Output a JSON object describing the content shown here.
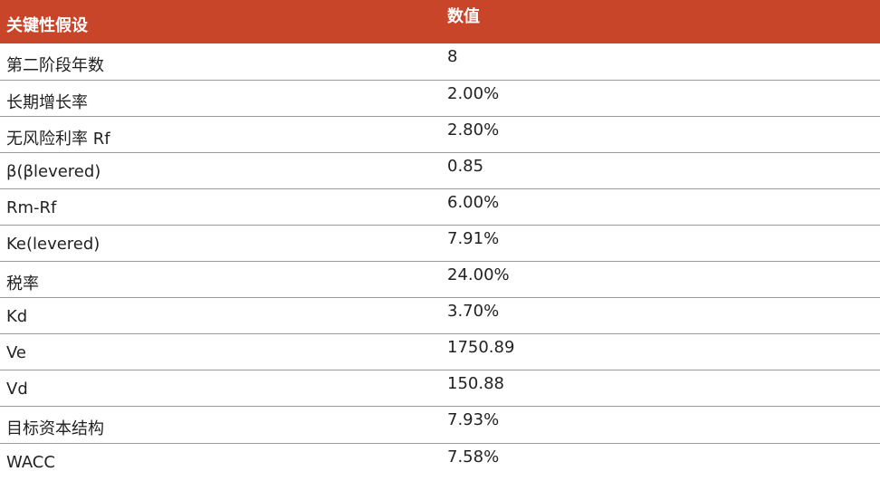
{
  "table": {
    "headers": [
      "关键性假设",
      "数值"
    ],
    "rows": [
      {
        "label": "第二阶段年数",
        "value": "8"
      },
      {
        "label": "长期增长率",
        "value": "2.00%"
      },
      {
        "label": "无风险利率 Rf",
        "value": "2.80%"
      },
      {
        "label": "β(βlevered)",
        "value": "0.85"
      },
      {
        "label": "Rm-Rf",
        "value": "6.00%"
      },
      {
        "label": "Ke(levered)",
        "value": "7.91%"
      },
      {
        "label": "税率",
        "value": "24.00%"
      },
      {
        "label": "Kd",
        "value": "3.70%"
      },
      {
        "label": "Ve",
        "value": "1750.89"
      },
      {
        "label": "Vd",
        "value": "150.88"
      },
      {
        "label": "目标资本结构",
        "value": "7.93%"
      },
      {
        "label": "WACC",
        "value": "7.58%"
      }
    ]
  },
  "colors": {
    "header_background": "#c8452a",
    "header_text": "#ffffff",
    "row_divider": "#9a9a9a"
  }
}
